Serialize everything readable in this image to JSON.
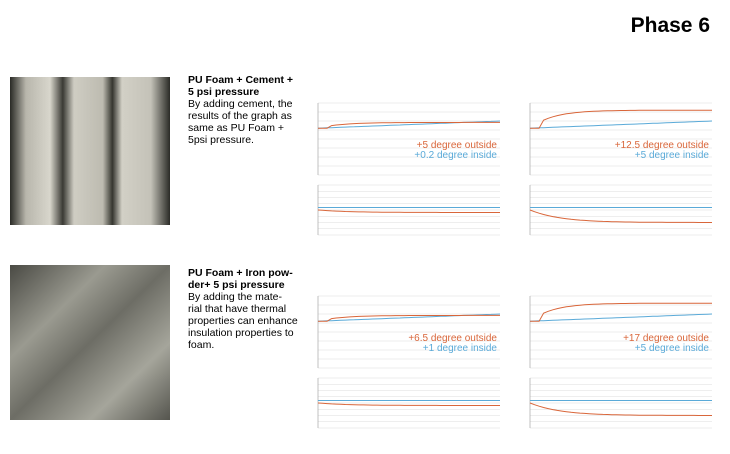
{
  "title": "Phase 6",
  "rows": [
    {
      "heading": [
        "PU Foam + Cement +",
        "5 psi pressure"
      ],
      "body": [
        "By adding cement, the",
        "results of the graph as",
        "same as PU Foam +",
        "5psi pressure."
      ],
      "notes": [
        [
          "+5 degree outside",
          "+0.2 degree inside"
        ],
        [
          "+12.5 degree outside",
          "+5 degree inside"
        ]
      ]
    },
    {
      "heading": [
        "PU Foam + Iron pow-",
        "der+ 5 psi pressure"
      ],
      "body": [
        "By adding the mate-",
        "rial that have thermal",
        "properties can enhance",
        "insulation properties to",
        "foam."
      ],
      "notes": [
        [
          "+6.5 degree outside",
          "+1 degree inside"
        ],
        [
          "+17 degree outside",
          "+5 degree inside"
        ]
      ]
    }
  ]
}
